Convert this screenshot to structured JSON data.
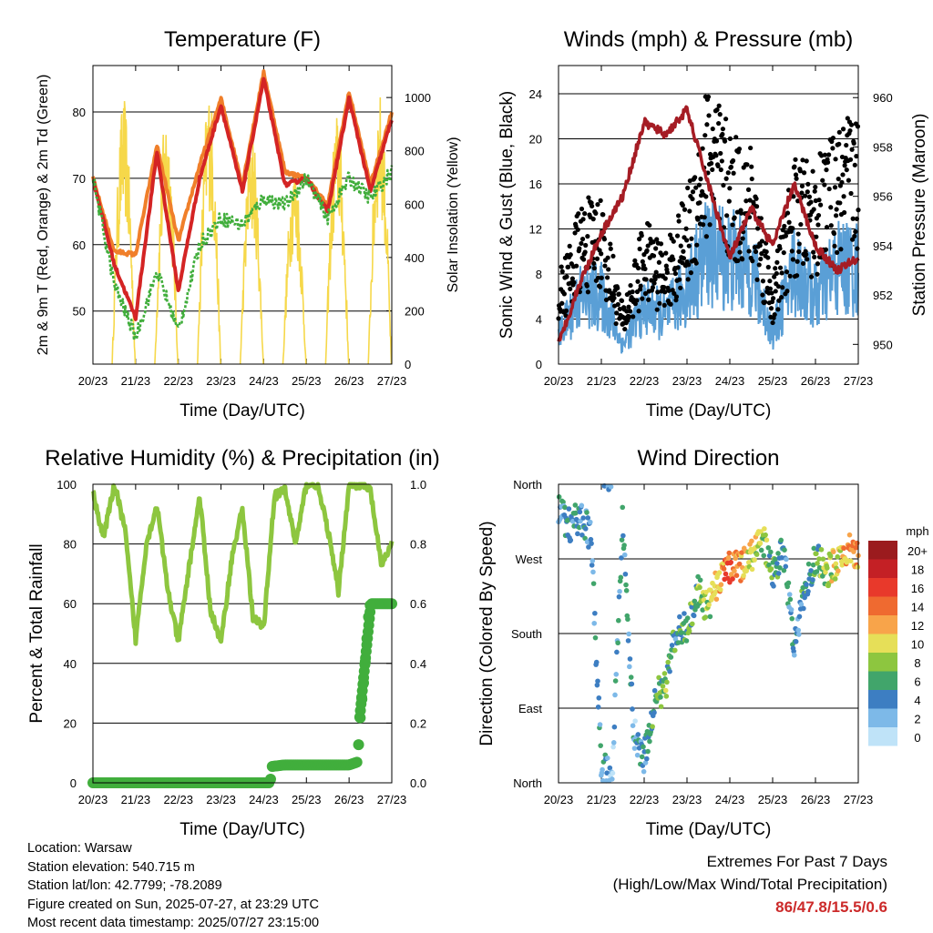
{
  "x_ticks": [
    "20/23",
    "21/23",
    "22/23",
    "23/23",
    "24/23",
    "25/23",
    "26/23",
    "27/23"
  ],
  "xlabel": "Time (Day/UTC)",
  "chart_data": [
    {
      "type": "line",
      "title": "Temperature (F)",
      "xlabel": "Time (Day/UTC)",
      "ylabel": "2m & 9m T (Red, Orange) & 2m Td (Green)",
      "ylabel_right": "Solar Insolation (Yellow)",
      "ylim": [
        42,
        87
      ],
      "yticks": [
        50,
        60,
        70,
        80
      ],
      "ylim_right": [
        0,
        1120
      ],
      "yticks_right": [
        0,
        200,
        400,
        600,
        800,
        1000
      ],
      "x_days": [
        0,
        0.5,
        1,
        1.5,
        2,
        2.5,
        3,
        3.5,
        4,
        4.5,
        5,
        5.5,
        6,
        6.5,
        7
      ],
      "series": [
        {
          "color": "#f07f2a",
          "values": [
            70,
            59,
            58.5,
            75,
            60.5,
            72,
            82,
            69,
            86,
            71,
            70,
            66,
            83,
            69,
            80
          ]
        },
        {
          "color": "#d42424",
          "values": [
            70,
            57,
            49,
            74,
            53,
            70,
            81,
            68,
            85,
            69,
            70,
            65,
            82,
            68,
            79
          ]
        },
        {
          "color": "#41ae3c",
          "values": [
            70,
            54,
            46,
            56,
            47,
            60,
            64,
            63,
            67,
            66,
            70,
            64,
            70,
            67,
            71
          ]
        }
      ],
      "solar_color": "#f6d84a",
      "solar_peaks": [
        1000,
        950,
        1040,
        880,
        760,
        950,
        1020,
        1050
      ]
    },
    {
      "type": "line",
      "title": "Winds (mph) & Pressure (mb)",
      "xlabel": "Time (Day/UTC)",
      "ylabel": "Sonic Wind & Gust (Blue, Black)",
      "ylabel_right": "Station Pressure (Maroon)",
      "ylim": [
        0,
        26.5
      ],
      "yticks": [
        0,
        4,
        8,
        12,
        16,
        20,
        24
      ],
      "ylim_right": [
        949.2,
        961.3
      ],
      "yticks_right": [
        950,
        952,
        954,
        956,
        958,
        960
      ],
      "x_days": [
        0,
        0.5,
        1,
        1.5,
        2,
        2.5,
        3,
        3.5,
        4,
        4.5,
        5,
        5.5,
        6,
        6.5,
        7
      ],
      "wind_mean": [
        3,
        7,
        7,
        2,
        6,
        5,
        8,
        12,
        11,
        10,
        3,
        10,
        7,
        10,
        10
      ],
      "gust_mean": [
        6,
        11,
        12,
        4,
        10,
        8,
        12,
        20,
        16,
        15,
        6,
        14,
        14,
        16,
        18
      ],
      "pressure": [
        950,
        952.5,
        954.5,
        956,
        959,
        958.5,
        959.5,
        956.5,
        953.5,
        955.5,
        954,
        956.5,
        954,
        953,
        953.5
      ],
      "colors": {
        "wind": "#5a9fd6",
        "gust": "#000000",
        "pressure": "#a51c24"
      }
    },
    {
      "type": "line",
      "title": "Relative Humidity (%) & Precipitation (in)",
      "xlabel": "Time (Day/UTC)",
      "ylabel": "Percent & Total Rainfall",
      "ylim": [
        0,
        100
      ],
      "yticks": [
        0,
        20,
        40,
        60,
        80,
        100
      ],
      "ylim_right": [
        0,
        1.0
      ],
      "yticks_right": [
        "0.0",
        "0.2",
        "0.4",
        "0.6",
        "0.8",
        "1.0"
      ],
      "x_days": [
        0,
        0.25,
        0.5,
        0.75,
        1,
        1.25,
        1.5,
        1.75,
        2,
        2.25,
        2.5,
        2.75,
        3,
        3.25,
        3.5,
        3.75,
        4,
        4.25,
        4.5,
        4.75,
        5,
        5.25,
        5.5,
        5.75,
        6,
        6.25,
        6.5,
        6.75,
        7
      ],
      "rh": [
        97,
        82,
        100,
        85,
        48,
        80,
        93,
        65,
        47,
        72,
        96,
        58,
        47,
        75,
        92,
        55,
        52,
        96,
        98,
        80,
        100,
        100,
        85,
        64,
        100,
        100,
        98,
        73,
        80
      ],
      "precip_x": [
        0,
        4.15,
        4.2,
        4.5,
        5.0,
        5.5,
        6.0,
        6.2,
        6.25,
        6.3,
        6.35,
        6.4,
        6.45,
        6.5,
        7.0
      ],
      "precip": [
        0,
        0,
        0.055,
        0.06,
        0.06,
        0.06,
        0.06,
        0.07,
        0.2,
        0.28,
        0.35,
        0.45,
        0.55,
        0.6,
        0.6
      ],
      "colors": {
        "rh": "#8dc63f",
        "precip": "#41ae3c"
      }
    },
    {
      "type": "scatter",
      "title": "Wind Direction",
      "xlabel": "Time (Day/UTC)",
      "ylabel": "Direction (Colored By Speed)",
      "yticks": [
        "North",
        "East",
        "South",
        "West",
        "North"
      ],
      "ylim": [
        0,
        360
      ],
      "x_days": [
        0,
        0.25,
        0.5,
        0.75,
        1,
        1.25,
        1.5,
        1.75,
        2,
        2.25,
        2.5,
        2.75,
        3,
        3.25,
        3.5,
        3.75,
        4,
        4.25,
        4.5,
        4.75,
        5,
        5.25,
        5.5,
        5.75,
        6,
        6.25,
        6.5,
        6.75,
        7
      ],
      "direction": [
        330,
        310,
        320,
        300,
        20,
        10,
        320,
        60,
        30,
        100,
        120,
        180,
        190,
        230,
        210,
        250,
        260,
        260,
        275,
        300,
        250,
        280,
        170,
        230,
        270,
        255,
        265,
        280,
        275
      ],
      "speed": [
        3,
        4,
        5,
        3,
        4,
        2,
        6,
        3,
        5,
        6,
        7,
        5,
        6,
        7,
        8,
        12,
        14,
        12,
        10,
        8,
        6,
        5,
        4,
        5,
        6,
        8,
        10,
        12,
        12
      ],
      "legend_title": "mph",
      "legend_labels": [
        "20+",
        "18",
        "16",
        "14",
        "12",
        "10",
        "8",
        "6",
        "4",
        "2",
        "0"
      ],
      "legend_colors": [
        "#9b1b1e",
        "#c42025",
        "#e8392b",
        "#ef6a30",
        "#f8a44a",
        "#e6df58",
        "#8dc63f",
        "#41a56b",
        "#3d7ec2",
        "#7db9e8",
        "#bfe3f8"
      ]
    }
  ],
  "info": {
    "location": "Location: Warsaw",
    "elevation": "Station elevation: 540.715 m",
    "latlon": "Station lat/lon: 42.7799; -78.2089",
    "created": "Figure created on Sun, 2025-07-27, at 23:29 UTC",
    "recent": "Most recent data timestamp: 2025/07/27 23:15:00"
  },
  "extremes": {
    "title": "Extremes For Past 7 Days",
    "subtitle": "(High/Low/Max Wind/Total Precipitation)",
    "values": "86/47.8/15.5/0.6"
  }
}
